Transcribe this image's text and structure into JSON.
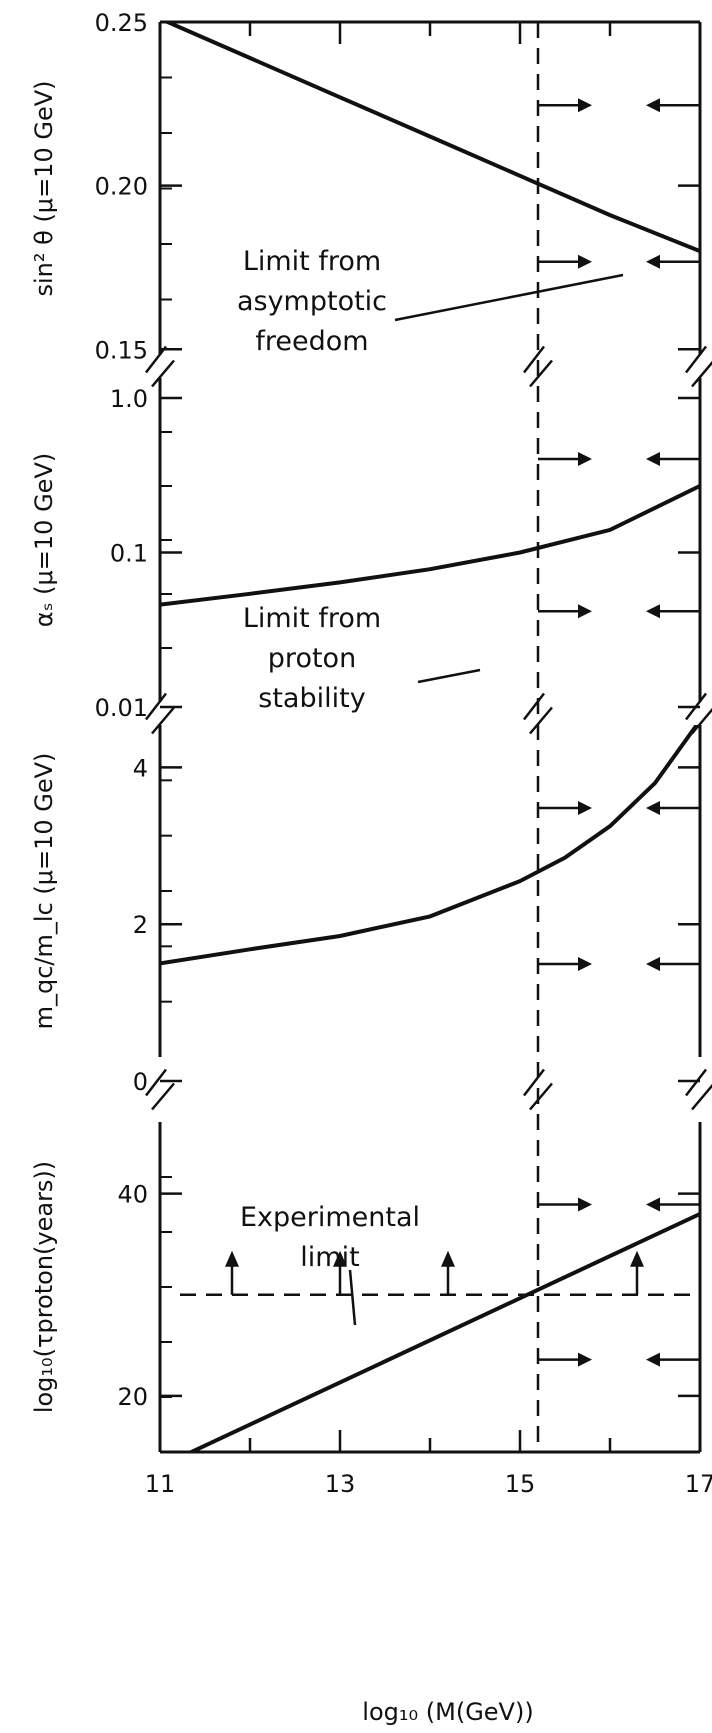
{
  "chart_data": {
    "type": "line",
    "x_label": "log₁₀ (M(GeV))",
    "x_ticks": [
      "11",
      "13",
      "15",
      "17"
    ],
    "xlim": [
      11,
      17
    ],
    "proton_stability_limit_x": 15.2,
    "panels": [
      {
        "id": "sin2theta",
        "ylabel": "sin² θ (μ=10 GeV)",
        "ylim": [
          0.14,
          0.25
        ],
        "y_tick_labels": [
          "0.25",
          "0.20",
          "0.15"
        ],
        "y_tick_values": [
          0.25,
          0.2,
          0.15
        ],
        "series": [
          {
            "x": [
              11,
              12,
              13,
              14,
              15,
              16,
              17
            ],
            "y": [
              0.251,
              0.239,
              0.227,
              0.215,
              0.203,
              0.191,
              0.18
            ]
          }
        ]
      },
      {
        "id": "alpha_s",
        "ylabel": "αₛ (μ=10 GeV)",
        "scale": "log",
        "ylim": [
          0.01,
          1.0
        ],
        "y_tick_labels": [
          "1.0",
          "0.1",
          "0.01"
        ],
        "y_tick_values": [
          1.0,
          0.1,
          0.01
        ],
        "series": [
          {
            "x": [
              11,
              12,
              13,
              14,
              15,
              16,
              17
            ],
            "y": [
              0.046,
              0.054,
              0.064,
              0.078,
              0.1,
              0.14,
              0.27
            ]
          }
        ]
      },
      {
        "id": "mass_ratio",
        "ylabel": "m_qc/m_lc (μ=10 GeV)",
        "ylim": [
          0,
          5
        ],
        "y_tick_labels": [
          "4",
          "2",
          "0"
        ],
        "y_tick_values": [
          4,
          2,
          0
        ],
        "series": [
          {
            "x": [
              11,
              12,
              13,
              14,
              15,
              15.5,
              16,
              16.5,
              17
            ],
            "y": [
              1.5,
              1.68,
              1.85,
              2.1,
              2.55,
              2.85,
              3.25,
              3.8,
              4.6
            ]
          }
        ]
      },
      {
        "id": "proton_lifetime",
        "ylabel": "log₁₀(τproton(years))",
        "ylim": [
          10,
          55
        ],
        "y_tick_labels": [
          "40",
          "20"
        ],
        "y_tick_values": [
          40,
          20
        ],
        "experimental_limit_y": 30,
        "series": [
          {
            "x": [
              11,
              17
            ],
            "y": [
              13,
              38
            ]
          }
        ]
      }
    ],
    "annotations": [
      {
        "lines": [
          "Limit from",
          "asymptotic",
          "freedom"
        ]
      },
      {
        "lines": [
          "Limit from",
          "proton",
          "stability"
        ]
      },
      {
        "lines": [
          "Experimental",
          "limit"
        ]
      }
    ]
  }
}
